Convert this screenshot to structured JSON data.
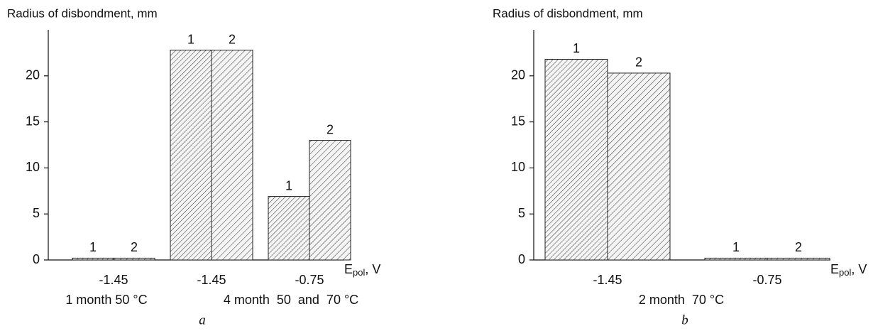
{
  "chart_data": [
    {
      "type": "bar",
      "y_label": "Radius of disbondment, mm",
      "categories": [
        "-1.45",
        "-1.45",
        "-0.75"
      ],
      "series": [
        {
          "name": "1",
          "color": "#333333",
          "values": [
            0.2,
            22.8,
            6.9
          ]
        },
        {
          "name": "2",
          "color": "#333333",
          "values": [
            0.2,
            22.8,
            13.0
          ]
        }
      ],
      "ylim": [
        0,
        25
      ],
      "yticks": [
        0,
        5,
        10,
        15,
        20
      ],
      "x_label": {
        "main": "E",
        "sub": "pol",
        "rest": ", V"
      },
      "group_notes": [
        "1 month 50 °C",
        "4 month  50  and  70 °C"
      ],
      "panel_label": "a"
    },
    {
      "type": "bar",
      "y_label": "Radius of disbondment, mm",
      "categories": [
        "-1.45",
        "-0.75"
      ],
      "series": [
        {
          "name": "1",
          "color": "#333333",
          "values": [
            21.8,
            0.2
          ]
        },
        {
          "name": "2",
          "color": "#333333",
          "values": [
            20.3,
            0.2
          ]
        }
      ],
      "ylim": [
        0,
        25
      ],
      "yticks": [
        0,
        5,
        10,
        15,
        20
      ],
      "x_label": {
        "main": "E",
        "sub": "pol",
        "rest": ", V"
      },
      "group_notes": [
        "2 month  70 °C"
      ],
      "panel_label": "b"
    }
  ]
}
